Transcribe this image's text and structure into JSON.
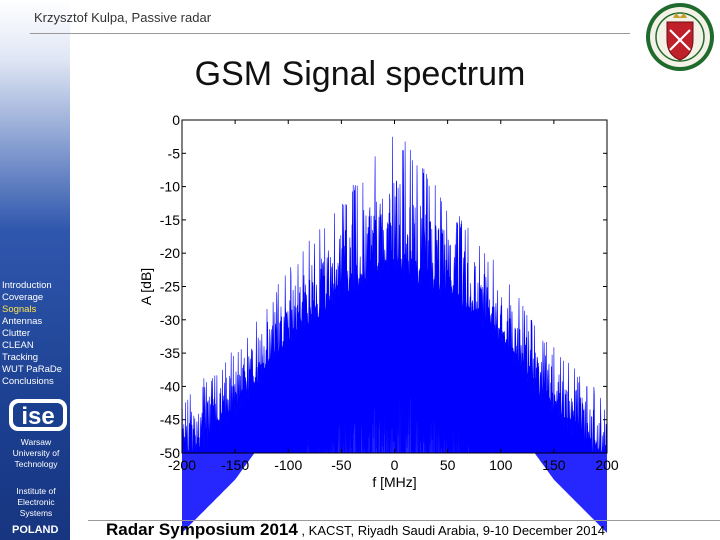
{
  "header": {
    "author": "Krzysztof Kulpa, Passive radar"
  },
  "slide": {
    "title": "GSM Signal spectrum"
  },
  "sidebar": {
    "items": [
      {
        "label": "Introduction",
        "active": false
      },
      {
        "label": "Coverage",
        "active": false
      },
      {
        "label": "Sognals",
        "active": true
      },
      {
        "label": "Antennas",
        "active": false
      },
      {
        "label": "Clutter",
        "active": false
      },
      {
        "label": "CLEAN",
        "active": false
      },
      {
        "label": "Tracking",
        "active": false
      },
      {
        "label": "WUT PaRaDe",
        "active": false
      },
      {
        "label": "Conclusions",
        "active": false
      }
    ],
    "logo_text": "ise",
    "university": [
      "Warsaw",
      "University of",
      "Technology"
    ],
    "institute": [
      "Institute of",
      "Electronic",
      "Systems"
    ],
    "country": "POLAND"
  },
  "footer": {
    "event": "Radar Symposium 2014",
    "details": " , KACST, Riyadh  Saudi Arabia,  9-10 December 2014"
  },
  "colors": {
    "signal": "#0000ff",
    "sidebar_top": "#dfe6f4",
    "sidebar_bottom": "#173580",
    "active_nav": "#ffe34d"
  },
  "chart_data": {
    "type": "line",
    "title": "",
    "xlabel": "f [MHz]",
    "ylabel": "A [dB]",
    "xlim": [
      -200,
      200
    ],
    "ylim": [
      -50,
      0
    ],
    "xticks": [
      -200,
      -150,
      -100,
      -50,
      0,
      50,
      100,
      150,
      200
    ],
    "yticks": [
      0,
      -5,
      -10,
      -15,
      -20,
      -25,
      -30,
      -35,
      -40,
      -45,
      -50
    ],
    "series": [
      {
        "color": "#0000ff",
        "description_points": {
          "f": [
            -200,
            -150,
            -100,
            -50,
            0,
            50,
            100,
            150,
            200
          ],
          "upper_envelope_dB": [
            -42,
            -34,
            -22,
            -12,
            -1,
            -12,
            -22,
            -34,
            -42
          ],
          "dense_band_top_dB": [
            -50,
            -42,
            -31,
            -24,
            -20,
            -24,
            -31,
            -42,
            -50
          ]
        }
      }
    ],
    "grid": false,
    "legend": "none"
  }
}
